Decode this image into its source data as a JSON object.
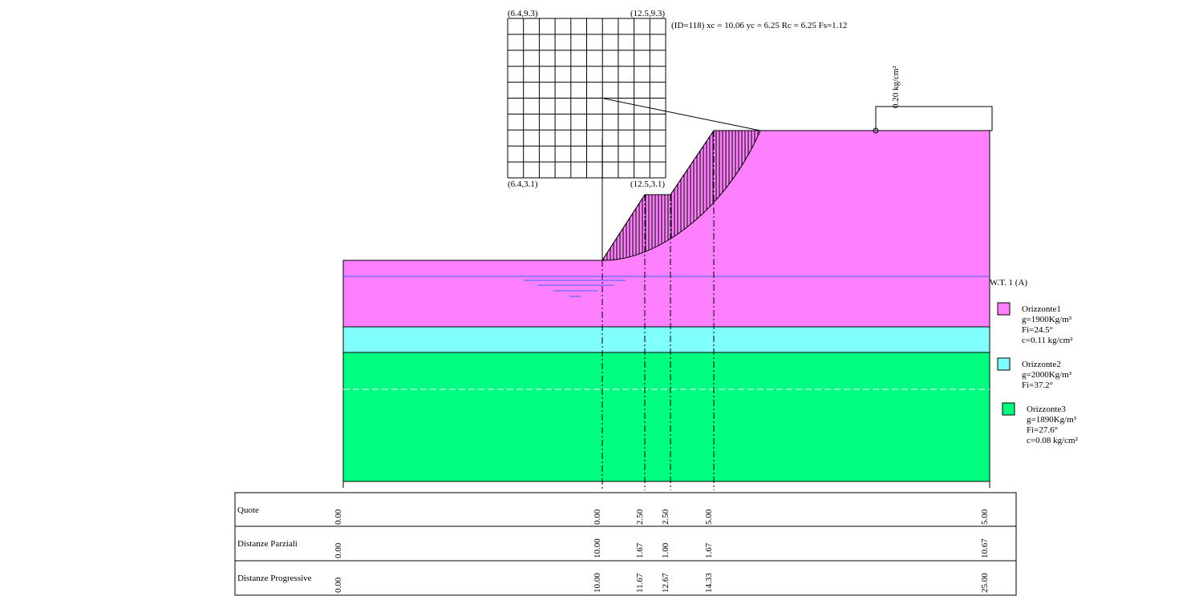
{
  "grid": {
    "top_left": "(6.4,9.3)",
    "top_right": "(12.5,9.3)",
    "bottom_left": "(6.4,3.1)",
    "bottom_right": "(12.5,3.1)"
  },
  "result": "(ID=118) xc = 10.06 yc = 6.25 Rc = 6.25 Fs=1.12",
  "load": "0.20 kg/cm²",
  "water_table": "W.T. 1 (A)",
  "legend": [
    {
      "name": "Orizzonte1",
      "color": "#ff80ff",
      "lines": [
        "g=1900Kg/m³",
        "Fi=24.5°",
        "c=0.11 kg/cm²"
      ]
    },
    {
      "name": "Orizzonte2",
      "color": "#80ffff",
      "lines": [
        "g=2000Kg/m³",
        "Fi=37.2°"
      ]
    },
    {
      "name": "Orizzonte3",
      "color": "#00ff80",
      "lines": [
        "g=1890Kg/m³",
        "Fi=27.6°",
        "c=0.08 kg/cm²"
      ]
    }
  ],
  "table": {
    "rows": [
      {
        "label": "Quote",
        "values": [
          "0.00",
          "0.00",
          "2.50",
          "2.50",
          "5.00",
          "5.00"
        ]
      },
      {
        "label": "Distanze Parziali",
        "values": [
          "0.00",
          "10.00",
          "1.67",
          "1.00",
          "1.67",
          "10.67"
        ]
      },
      {
        "label": "Distanze Progressive",
        "values": [
          "0.00",
          "10.00",
          "11.67",
          "12.67",
          "14.33",
          "25.00"
        ]
      }
    ]
  }
}
